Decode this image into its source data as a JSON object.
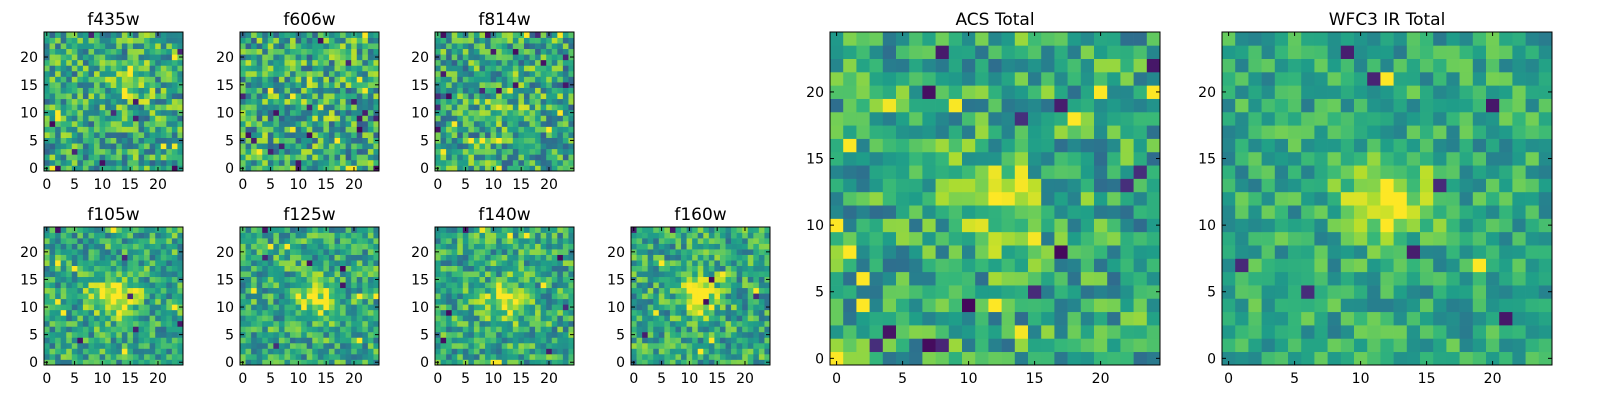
{
  "chart_data": [
    {
      "type": "heatmap",
      "title": "f435w",
      "xlim": [
        0,
        24
      ],
      "ylim": [
        0,
        24
      ],
      "xticks": [
        "0",
        "5",
        "10",
        "15",
        "20"
      ],
      "yticks": [
        "0",
        "5",
        "10",
        "15",
        "20"
      ],
      "colormap": "viridis",
      "grid": false,
      "features": {
        "noise": 0.58,
        "peak": {
          "x": 15,
          "y": 15,
          "amp": 0.25,
          "sigma": 2.5
        },
        "dark_pixels": 10,
        "bright_pixels": 6
      }
    },
    {
      "type": "heatmap",
      "title": "f606w",
      "xlim": [
        0,
        24
      ],
      "ylim": [
        0,
        24
      ],
      "xticks": [
        "0",
        "5",
        "10",
        "15",
        "20"
      ],
      "yticks": [
        "0",
        "5",
        "10",
        "15",
        "20"
      ],
      "colormap": "viridis",
      "grid": false,
      "features": {
        "noise": 0.62,
        "peak": {
          "x": 12,
          "y": 12,
          "amp": 0.1,
          "sigma": 3
        },
        "dark_pixels": 18,
        "bright_pixels": 10
      }
    },
    {
      "type": "heatmap",
      "title": "f814w",
      "xlim": [
        0,
        24
      ],
      "ylim": [
        0,
        24
      ],
      "xticks": [
        "0",
        "5",
        "10",
        "15",
        "20"
      ],
      "yticks": [
        "0",
        "5",
        "10",
        "15",
        "20"
      ],
      "colormap": "viridis",
      "grid": false,
      "features": {
        "noise": 0.6,
        "peak": {
          "x": 12,
          "y": 12,
          "amp": 0.1,
          "sigma": 3
        },
        "dark_pixels": 16,
        "bright_pixels": 10
      }
    },
    {
      "type": "heatmap",
      "title": "f105w",
      "xlim": [
        0,
        24
      ],
      "ylim": [
        0,
        24
      ],
      "xticks": [
        "0",
        "5",
        "10",
        "15",
        "20"
      ],
      "yticks": [
        "0",
        "5",
        "10",
        "15",
        "20"
      ],
      "colormap": "viridis",
      "grid": false,
      "features": {
        "noise": 0.5,
        "peak": {
          "x": 12,
          "y": 12,
          "amp": 0.35,
          "sigma": 3
        },
        "dark_pixels": 6,
        "bright_pixels": 8
      }
    },
    {
      "type": "heatmap",
      "title": "f125w",
      "xlim": [
        0,
        24
      ],
      "ylim": [
        0,
        24
      ],
      "xticks": [
        "0",
        "5",
        "10",
        "15",
        "20"
      ],
      "yticks": [
        "0",
        "5",
        "10",
        "15",
        "20"
      ],
      "colormap": "viridis",
      "grid": false,
      "features": {
        "noise": 0.5,
        "peak": {
          "x": 13,
          "y": 12,
          "amp": 0.35,
          "sigma": 2.5
        },
        "dark_pixels": 6,
        "bright_pixels": 6
      }
    },
    {
      "type": "heatmap",
      "title": "f140w",
      "xlim": [
        0,
        24
      ],
      "ylim": [
        0,
        24
      ],
      "xticks": [
        "0",
        "5",
        "10",
        "15",
        "20"
      ],
      "yticks": [
        "0",
        "5",
        "10",
        "15",
        "20"
      ],
      "colormap": "viridis",
      "grid": false,
      "features": {
        "noise": 0.5,
        "peak": {
          "x": 12,
          "y": 11,
          "amp": 0.35,
          "sigma": 2.5
        },
        "dark_pixels": 6,
        "bright_pixels": 6
      }
    },
    {
      "type": "heatmap",
      "title": "f160w",
      "xlim": [
        0,
        24
      ],
      "ylim": [
        0,
        24
      ],
      "xticks": [
        "0",
        "5",
        "10",
        "15",
        "20"
      ],
      "yticks": [
        "0",
        "5",
        "10",
        "15",
        "20"
      ],
      "colormap": "viridis",
      "grid": false,
      "features": {
        "noise": 0.5,
        "peak": {
          "x": 12,
          "y": 12,
          "amp": 0.4,
          "sigma": 2.5
        },
        "dark_pixels": 6,
        "bright_pixels": 6
      }
    },
    {
      "type": "heatmap",
      "title": "ACS Total",
      "xlim": [
        0,
        24
      ],
      "ylim": [
        0,
        24
      ],
      "xticks": [
        "0",
        "5",
        "10",
        "15",
        "20"
      ],
      "yticks": [
        "0",
        "5",
        "10",
        "15",
        "20"
      ],
      "colormap": "viridis",
      "grid": false,
      "features": {
        "noise": 0.5,
        "peak": {
          "x": 12,
          "y": 12,
          "amp": 0.3,
          "sigma": 2.5
        },
        "dark_pixels": 14,
        "bright_pixels": 14
      }
    },
    {
      "type": "heatmap",
      "title": "WFC3 IR Total",
      "xlim": [
        0,
        24
      ],
      "ylim": [
        0,
        24
      ],
      "xticks": [
        "0",
        "5",
        "10",
        "15",
        "20"
      ],
      "yticks": [
        "0",
        "5",
        "10",
        "15",
        "20"
      ],
      "colormap": "viridis",
      "grid": false,
      "features": {
        "noise": 0.38,
        "peak": {
          "x": 12,
          "y": 12,
          "amp": 0.45,
          "sigma": 2.2
        },
        "dark_pixels": 8,
        "bright_pixels": 2
      }
    }
  ]
}
